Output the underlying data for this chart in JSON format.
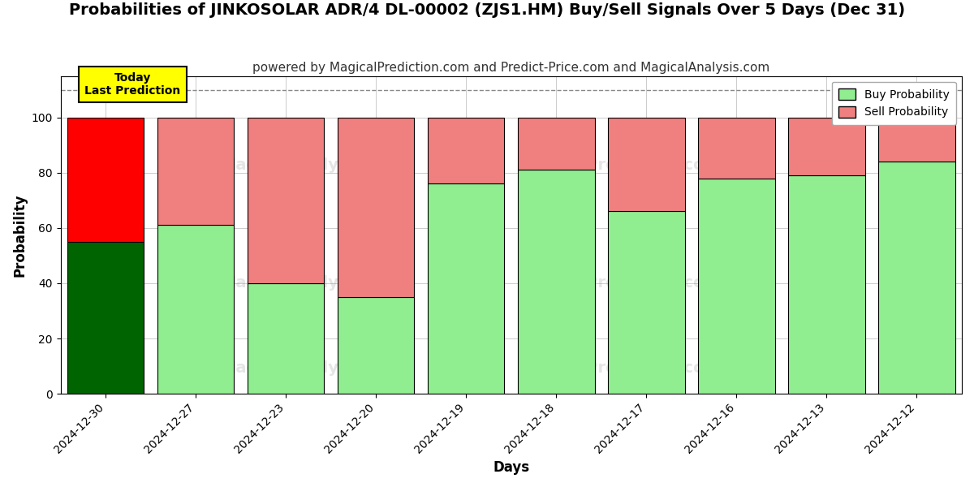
{
  "title": "Probabilities of JINKOSOLAR ADR/4 DL-00002 (ZJS1.HM) Buy/Sell Signals Over 5 Days (Dec 31)",
  "subtitle": "powered by MagicalPrediction.com and Predict-Price.com and MagicalAnalysis.com",
  "xlabel": "Days",
  "ylabel": "Probability",
  "categories": [
    "2024-12-30",
    "2024-12-27",
    "2024-12-23",
    "2024-12-20",
    "2024-12-19",
    "2024-12-18",
    "2024-12-17",
    "2024-12-16",
    "2024-12-13",
    "2024-12-12"
  ],
  "buy_values": [
    55,
    61,
    40,
    35,
    76,
    81,
    66,
    78,
    79,
    84
  ],
  "sell_values": [
    45,
    39,
    60,
    65,
    24,
    19,
    34,
    22,
    21,
    16
  ],
  "today_index": 0,
  "buy_color_normal": "#90EE90",
  "buy_color_today": "#006400",
  "sell_color_normal": "#F08080",
  "sell_color_today": "#FF0000",
  "bar_edge_color": "#000000",
  "ylim": [
    0,
    115
  ],
  "yticks": [
    0,
    20,
    40,
    60,
    80,
    100
  ],
  "dashed_line_y": 110,
  "legend_buy_label": "Buy Probability",
  "legend_sell_label": "Sell Probability",
  "today_box_text": "Today\nLast Prediction",
  "today_box_facecolor": "#FFFF00",
  "today_box_edgecolor": "#000000",
  "grid_color": "#888888",
  "background_color": "#ffffff",
  "title_fontsize": 14,
  "subtitle_fontsize": 11,
  "axis_label_fontsize": 12,
  "tick_fontsize": 10,
  "bar_width": 0.85
}
